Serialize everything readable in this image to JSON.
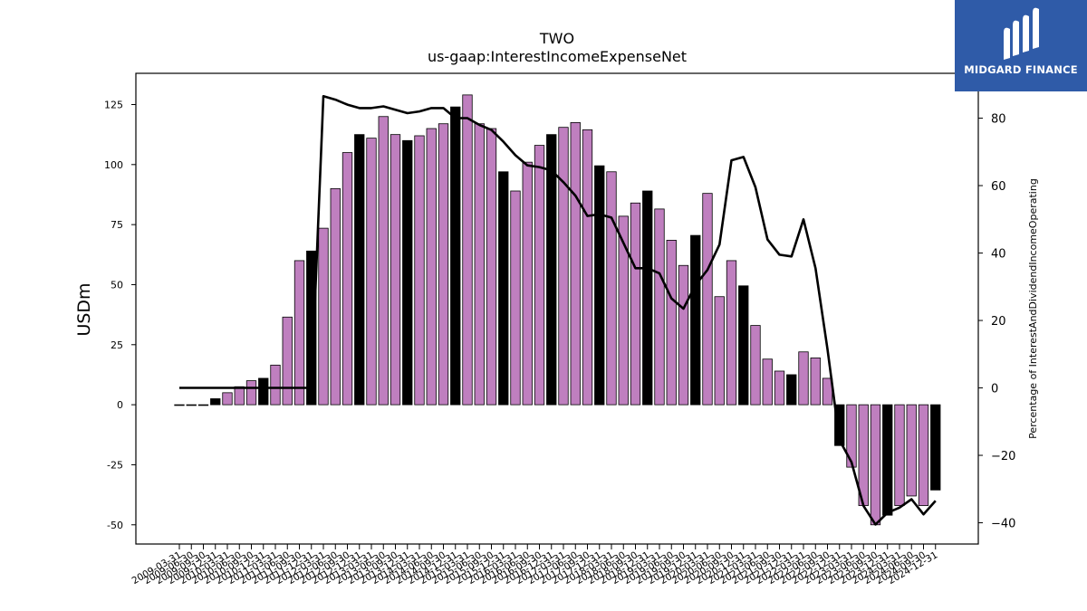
{
  "chart_data": {
    "type": "bar",
    "title": "TWO",
    "subtitle": "us-gaap:InterestIncomeExpenseNet",
    "ylabel": "USDm",
    "y2label": "Percentage of InterestAndDividendIncomeOperating",
    "ylim": [
      -58,
      138
    ],
    "y2lim": [
      -46.3,
      93.3
    ],
    "yticks": [
      -50,
      -25,
      0,
      25,
      50,
      75,
      100,
      125
    ],
    "y2ticks": [
      -40,
      -20,
      0,
      20,
      40,
      60,
      80
    ],
    "grid": false,
    "categories": [
      "2009-03-31",
      "2009-06-30",
      "2009-09-30",
      "2009-12-31",
      "2010-03-31",
      "2010-06-30",
      "2010-09-30",
      "2010-12-31",
      "2011-03-31",
      "2011-06-30",
      "2011-09-30",
      "2011-12-31",
      "2012-03-31",
      "2012-06-30",
      "2012-09-30",
      "2012-12-31",
      "2013-03-31",
      "2013-06-30",
      "2013-09-30",
      "2013-12-31",
      "2014-03-31",
      "2014-06-30",
      "2014-09-30",
      "2014-12-31",
      "2015-03-31",
      "2015-06-30",
      "2015-09-30",
      "2015-12-31",
      "2016-03-31",
      "2016-06-30",
      "2016-09-30",
      "2016-12-31",
      "2017-03-31",
      "2017-06-30",
      "2017-09-30",
      "2017-12-31",
      "2018-03-31",
      "2018-06-30",
      "2018-09-30",
      "2018-12-31",
      "2019-03-31",
      "2019-06-30",
      "2019-09-30",
      "2019-12-31",
      "2020-03-31",
      "2020-06-30",
      "2020-09-30",
      "2020-12-31",
      "2021-03-31",
      "2021-06-30",
      "2021-09-30",
      "2021-12-31",
      "2022-03-31",
      "2022-06-30",
      "2022-09-30",
      "2022-12-31",
      "2023-03-31",
      "2023-06-30",
      "2023-09-30",
      "2023-12-31",
      "2024-03-31",
      "2024-06-30",
      "2024-09-30",
      "2024-12-31"
    ],
    "values": [
      0,
      0,
      0,
      2.5,
      5,
      7.5,
      10,
      11,
      16.5,
      36.5,
      60,
      64,
      73.5,
      90,
      105,
      112.5,
      111,
      120,
      112.5,
      110,
      112,
      115,
      117,
      124,
      129,
      117,
      115,
      97,
      89,
      101,
      108,
      112.5,
      115.5,
      117.5,
      114.5,
      99.5,
      97,
      78.5,
      84,
      89,
      81.5,
      68.5,
      58,
      70.5,
      88,
      45,
      60,
      49.5,
      33,
      19,
      14,
      12.5,
      22,
      19.5,
      11,
      -17,
      -26,
      -42,
      -50,
      -46,
      -42,
      -38,
      -42,
      -35.5
    ],
    "highlight_indices": [
      3,
      7,
      11,
      15,
      19,
      23,
      27,
      31,
      35,
      39,
      43,
      47,
      51,
      55,
      59,
      63
    ],
    "bar_color": "#bf7fbf",
    "highlight_color": "#000000",
    "line_series": {
      "axis": "right",
      "color": "#000000",
      "values": [
        0,
        0,
        0,
        0,
        0,
        0,
        0,
        0,
        0,
        0,
        0,
        0,
        86.5,
        85.5,
        84,
        83,
        83,
        83.5,
        82.5,
        81.5,
        82,
        83,
        83,
        80,
        80,
        78,
        76.5,
        73,
        69,
        66,
        65.5,
        64.5,
        61,
        57,
        51,
        51.5,
        50.5,
        43,
        35.5,
        35.5,
        34,
        26.5,
        23.5,
        30.5,
        35,
        42.5,
        67.5,
        68.5,
        59.5,
        44,
        39.5,
        39,
        50,
        35.5,
        11.5,
        -15.5,
        -22,
        -35,
        -40.5,
        -37,
        -35.5,
        -33,
        -37.5,
        -33.5
      ]
    }
  },
  "logo": {
    "text": "MIDGARD FINANCE",
    "color": "#2f5ba8"
  }
}
